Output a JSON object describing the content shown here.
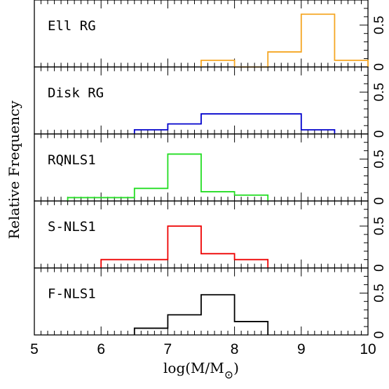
{
  "chart_data": {
    "type": "histogram",
    "layout": "stacked-panels",
    "xlabel": "log(M/M",
    "xlabel_subscript": "⊙",
    "xlabel_close": ")",
    "ylabel": "Relative Frequency",
    "xlim": [
      5,
      10
    ],
    "x_ticks": [
      "5",
      "6",
      "7",
      "8",
      "9",
      "10"
    ],
    "y_ticks_right": [
      "0",
      "0.5"
    ],
    "ylim_per_panel": [
      0,
      0.8
    ],
    "bin_edges": [
      5.5,
      6.0,
      6.5,
      7.0,
      7.5,
      8.0,
      8.5,
      9.0,
      9.5,
      10.0
    ],
    "panels": [
      {
        "label": "Ell RG",
        "color": "#f5a623",
        "bins": [
          {
            "x0": 7.5,
            "x1": 8.0,
            "y": 0.08
          },
          {
            "x0": 8.0,
            "x1": 8.5,
            "y": 0.0
          },
          {
            "x0": 8.5,
            "x1": 9.0,
            "y": 0.18
          },
          {
            "x0": 9.0,
            "x1": 9.5,
            "y": 0.63
          },
          {
            "x0": 9.5,
            "x1": 10.0,
            "y": 0.08
          }
        ]
      },
      {
        "label": "Disk RG",
        "color": "#0000cc",
        "bins": [
          {
            "x0": 6.5,
            "x1": 7.0,
            "y": 0.05
          },
          {
            "x0": 7.0,
            "x1": 7.5,
            "y": 0.12
          },
          {
            "x0": 7.5,
            "x1": 9.0,
            "y": 0.24
          },
          {
            "x0": 9.0,
            "x1": 9.5,
            "y": 0.05
          }
        ]
      },
      {
        "label": "RQNLS1",
        "color": "#22dd22",
        "bins": [
          {
            "x0": 5.5,
            "x1": 6.5,
            "y": 0.04
          },
          {
            "x0": 6.5,
            "x1": 7.0,
            "y": 0.15
          },
          {
            "x0": 7.0,
            "x1": 7.5,
            "y": 0.56
          },
          {
            "x0": 7.5,
            "x1": 8.0,
            "y": 0.11
          },
          {
            "x0": 8.0,
            "x1": 8.5,
            "y": 0.07
          }
        ]
      },
      {
        "label": "S-NLS1",
        "color": "#ee0000",
        "bins": [
          {
            "x0": 6.0,
            "x1": 7.0,
            "y": 0.1
          },
          {
            "x0": 7.0,
            "x1": 7.5,
            "y": 0.5
          },
          {
            "x0": 7.5,
            "x1": 8.0,
            "y": 0.17
          },
          {
            "x0": 8.0,
            "x1": 8.5,
            "y": 0.1
          }
        ]
      },
      {
        "label": "F-NLS1",
        "color": "#000000",
        "bins": [
          {
            "x0": 6.5,
            "x1": 7.0,
            "y": 0.08
          },
          {
            "x0": 7.0,
            "x1": 7.5,
            "y": 0.24
          },
          {
            "x0": 7.5,
            "x1": 8.0,
            "y": 0.48
          },
          {
            "x0": 8.0,
            "x1": 8.5,
            "y": 0.16
          }
        ]
      }
    ]
  }
}
